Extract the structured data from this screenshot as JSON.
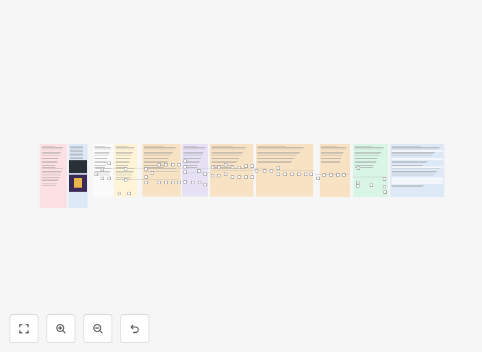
{
  "controls": [
    {
      "name": "fit-view-button",
      "icon": "fit-view-icon"
    },
    {
      "name": "zoom-in-button",
      "icon": "zoom-in-icon"
    },
    {
      "name": "zoom-out-button",
      "icon": "zoom-out-icon"
    },
    {
      "name": "reset-view-button",
      "icon": "undo-icon"
    }
  ],
  "panel_colors": {
    "pink": "#fde0e3",
    "blue": "#dde9f7",
    "white": "#fbfbfb",
    "yellow": "#fff4d6",
    "orange": "#f8e2c4",
    "purple": "#e6e1f5",
    "green": "#d9f5e6"
  },
  "canvas_background": "#f6f6f6"
}
